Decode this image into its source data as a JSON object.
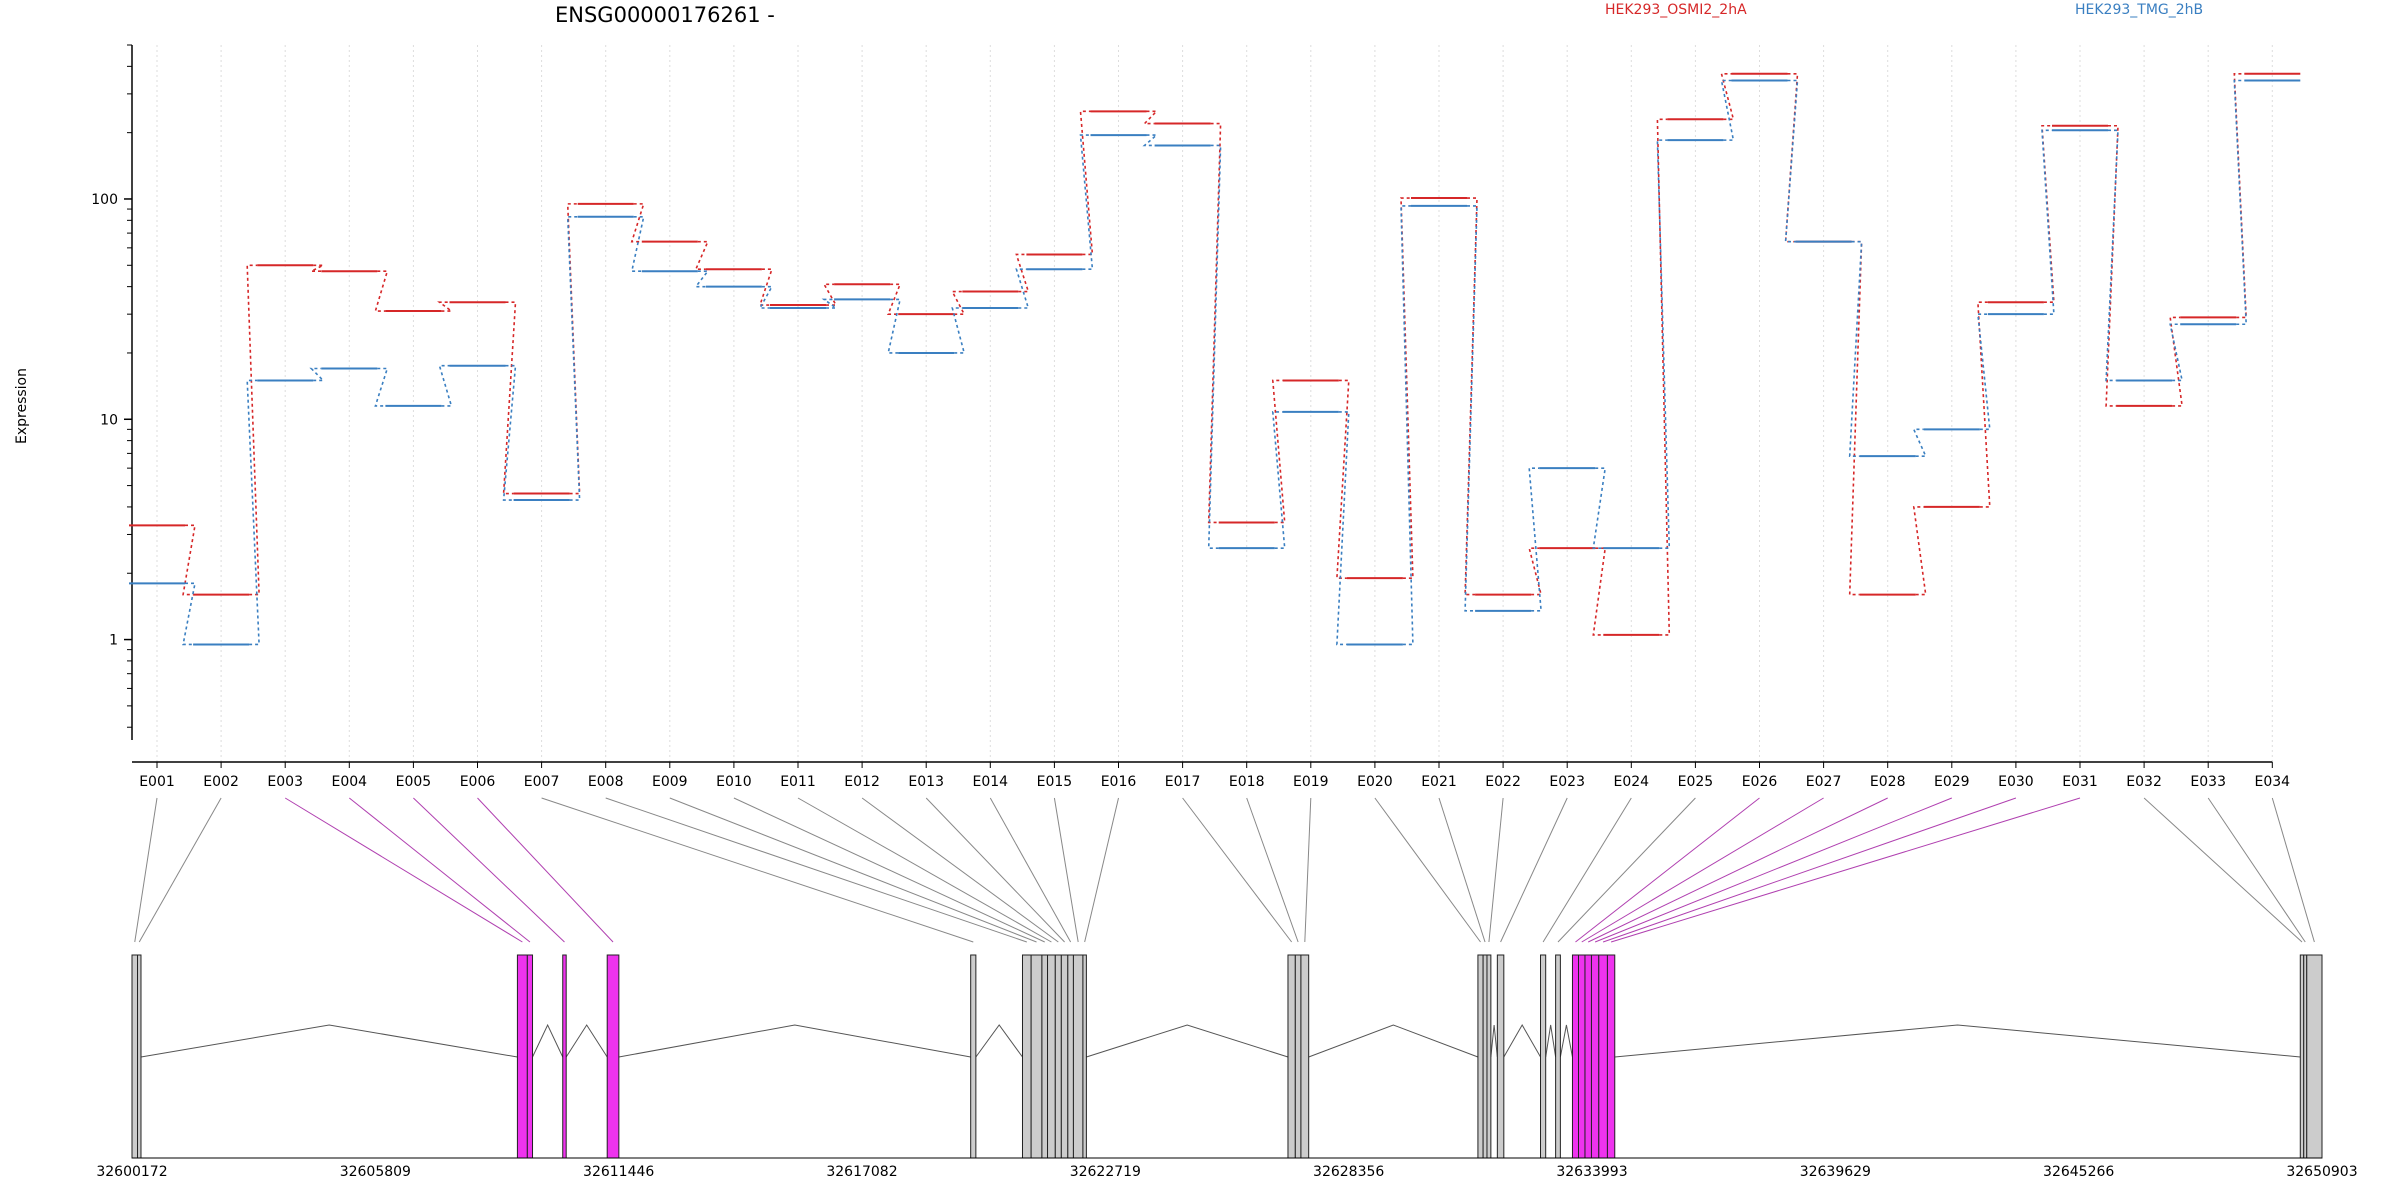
{
  "chart_data": {
    "type": "line",
    "title": "ENSG00000176261 -",
    "ylabel": "Expression",
    "y_scale": "log",
    "ylim": [
      0.35,
      500
    ],
    "y_ticks": [
      {
        "value": 1,
        "label": "1"
      },
      {
        "value": 10,
        "label": "10"
      },
      {
        "value": 100,
        "label": "100"
      }
    ],
    "grid": "vertical dotted lines at each exon",
    "legend_position": "top-right",
    "categories": [
      "E001",
      "E002",
      "E003",
      "E004",
      "E005",
      "E006",
      "E007",
      "E008",
      "E009",
      "E010",
      "E011",
      "E012",
      "E013",
      "E014",
      "E015",
      "E016",
      "E017",
      "E018",
      "E019",
      "E020",
      "E021",
      "E022",
      "E023",
      "E024",
      "E025",
      "E026",
      "E027",
      "E028",
      "E029",
      "E030",
      "E031",
      "E032",
      "E033",
      "E034"
    ],
    "series": [
      {
        "name": "HEK293_OSMI2_2hA",
        "color": "#d62728",
        "values": [
          3.3,
          1.6,
          50,
          47,
          31,
          34,
          4.6,
          95,
          64,
          48,
          33,
          41,
          30,
          38,
          56,
          250,
          220,
          3.4,
          15,
          1.9,
          101,
          1.6,
          2.6,
          1.05,
          230,
          370,
          64,
          1.6,
          4,
          34,
          215,
          11.5,
          29,
          370
        ]
      },
      {
        "name": "HEK293_TMG_2hB",
        "color": "#3a7fc1",
        "values": [
          1.8,
          0.95,
          15,
          17,
          11.5,
          17.5,
          4.3,
          83,
          47,
          40,
          32,
          35,
          20,
          32,
          48,
          195,
          175,
          2.6,
          10.8,
          0.95,
          93,
          1.35,
          6,
          2.6,
          185,
          345,
          64,
          6.8,
          9,
          30,
          205,
          15,
          27,
          345
        ]
      }
    ],
    "gene_model": {
      "x_axis_ticks": [
        "32600172",
        "32605809",
        "32611446",
        "32617082",
        "32622719",
        "32628356",
        "32633993",
        "32639629",
        "32645266",
        "32650903"
      ],
      "coord_start": 32600172,
      "coord_end": 32650903,
      "exon_fill": "#cccccc",
      "highlight_fill": "#ee33ee",
      "highlighted_exons": [
        "E003",
        "E004",
        "E005",
        "E006",
        "E026",
        "E027",
        "E028",
        "E029",
        "E030",
        "E031"
      ],
      "exons": [
        {
          "id": "E001",
          "start": 32600172,
          "end": 32600300
        },
        {
          "id": "E002",
          "start": 32600300,
          "end": 32600380
        },
        {
          "id": "E003",
          "start": 32609100,
          "end": 32609330
        },
        {
          "id": "E004",
          "start": 32609330,
          "end": 32609450
        },
        {
          "id": "E005",
          "start": 32610150,
          "end": 32610230
        },
        {
          "id": "E006",
          "start": 32611180,
          "end": 32611450
        },
        {
          "id": "E007",
          "start": 32619600,
          "end": 32619720
        },
        {
          "id": "E008",
          "start": 32620800,
          "end": 32621000
        },
        {
          "id": "E009",
          "start": 32621000,
          "end": 32621250
        },
        {
          "id": "E010",
          "start": 32621250,
          "end": 32621380
        },
        {
          "id": "E011",
          "start": 32621380,
          "end": 32621560
        },
        {
          "id": "E012",
          "start": 32621560,
          "end": 32621700
        },
        {
          "id": "E013",
          "start": 32621700,
          "end": 32621850
        },
        {
          "id": "E014",
          "start": 32621850,
          "end": 32621980
        },
        {
          "id": "E015",
          "start": 32621980,
          "end": 32622200
        },
        {
          "id": "E016",
          "start": 32622200,
          "end": 32622280
        },
        {
          "id": "E017",
          "start": 32626950,
          "end": 32627120
        },
        {
          "id": "E018",
          "start": 32627120,
          "end": 32627250
        },
        {
          "id": "E019",
          "start": 32627250,
          "end": 32627430
        },
        {
          "id": "E020",
          "start": 32631350,
          "end": 32631470
        },
        {
          "id": "E021",
          "start": 32631470,
          "end": 32631560
        },
        {
          "id": "E022",
          "start": 32631560,
          "end": 32631650
        },
        {
          "id": "E023",
          "start": 32631800,
          "end": 32631950
        },
        {
          "id": "E024",
          "start": 32632800,
          "end": 32632920
        },
        {
          "id": "E025",
          "start": 32633150,
          "end": 32633260
        },
        {
          "id": "E026",
          "start": 32633540,
          "end": 32633680
        },
        {
          "id": "E027",
          "start": 32633680,
          "end": 32633830
        },
        {
          "id": "E028",
          "start": 32633830,
          "end": 32633980
        },
        {
          "id": "E029",
          "start": 32633980,
          "end": 32634150
        },
        {
          "id": "E030",
          "start": 32634150,
          "end": 32634350
        },
        {
          "id": "E031",
          "start": 32634350,
          "end": 32634520
        },
        {
          "id": "E032",
          "start": 32650400,
          "end": 32650480
        },
        {
          "id": "E033",
          "start": 32650480,
          "end": 32650550
        },
        {
          "id": "E034",
          "start": 32650550,
          "end": 32650903
        }
      ]
    }
  }
}
